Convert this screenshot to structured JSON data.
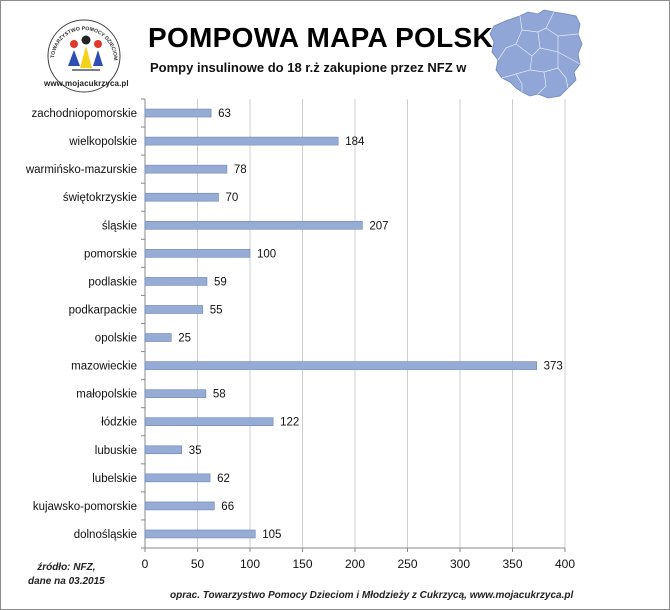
{
  "header": {
    "title": "POMPOWA MAPA POLSKI",
    "subtitle": "Pompy insulinowe do 18 r.ż zakupione przez NFZ w",
    "logo_text": "TOWARZYSTWO POMOCY DZIECIOM I MŁODZIEŻY Z CUKRZYCĄ",
    "logo_url": "www.mojacukrzyca.pl"
  },
  "footer": {
    "source_line1": "źródło: NFZ,",
    "source_line2": "dane na 03.2015",
    "credit": "oprac. Towarzystwo  Pomocy Dzieciom i Młodzieży z Cukrzycą, www.mojacukrzyca.pl"
  },
  "colors": {
    "bar_fill": "#96acd4",
    "bar_stroke": "#6f86b3",
    "map_fill": "#8fa6d6",
    "grid": "#cfcfcf"
  },
  "chart_data": {
    "type": "bar",
    "orientation": "horizontal",
    "categories": [
      "zachodniopomorskie",
      "wielkopolskie",
      "warmińsko-mazurskie",
      "świętokrzyskie",
      "śląskie",
      "pomorskie",
      "podlaskie",
      "podkarpackie",
      "opolskie",
      "mazowieckie",
      "małopolskie",
      "łódzkie",
      "lubuskie",
      "lubelskie",
      "kujawsko-pomorskie",
      "dolnośląskie"
    ],
    "values": [
      63,
      184,
      78,
      70,
      207,
      100,
      59,
      55,
      25,
      373,
      58,
      122,
      35,
      62,
      66,
      105
    ],
    "xlim": [
      0,
      400
    ],
    "xticks": [
      0,
      50,
      100,
      150,
      200,
      250,
      300,
      350,
      400
    ],
    "grid": true,
    "data_labels": true
  }
}
